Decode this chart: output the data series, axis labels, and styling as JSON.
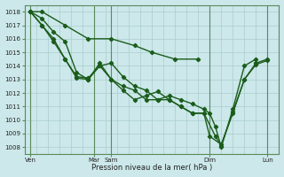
{
  "xlabel": "Pression niveau de la mer( hPa )",
  "background_color": "#cce8ea",
  "grid_color": "#aacccc",
  "line_color": "#1a5c1a",
  "vline_color": "#5a8a5a",
  "ylim": [
    1007.5,
    1018.5
  ],
  "yticks": [
    1008,
    1009,
    1010,
    1011,
    1012,
    1013,
    1014,
    1015,
    1016,
    1017,
    1018
  ],
  "xlim": [
    0,
    22
  ],
  "xtick_positions": [
    0.5,
    6,
    7.5,
    16,
    21
  ],
  "xtick_labels": [
    "Ven",
    "Mar",
    "Sam",
    "Dim",
    "Lun"
  ],
  "vline_positions": [
    0.5,
    6,
    7.5,
    16,
    21
  ],
  "series": [
    {
      "x": [
        0.5,
        1.5,
        3.5,
        5.5,
        7.5,
        9.5,
        11,
        13,
        15
      ],
      "y": [
        1018,
        1018,
        1017,
        1016,
        1016,
        1015.5,
        1015,
        1014.5,
        1014.5
      ]
    },
    {
      "x": [
        0.5,
        1.5,
        2.5,
        3.5,
        4.5,
        5.5,
        6.5,
        7.5,
        8.5,
        9.5,
        10.5,
        11.5,
        12.5,
        13.5,
        14.5,
        15.5,
        16,
        17,
        18,
        19,
        20,
        21
      ],
      "y": [
        1018,
        1017,
        1016,
        1014.5,
        1013.1,
        1013,
        1014,
        1013,
        1012.2,
        1011.5,
        1011.8,
        1012.1,
        1011.5,
        1011.0,
        1010.5,
        1010.5,
        1008.8,
        1008.2,
        1010.5,
        1013,
        1014.2,
        1014.5
      ]
    },
    {
      "x": [
        0.5,
        1.5,
        2.5,
        3.5,
        4.5,
        5.5,
        6.5,
        7.5,
        8.5,
        9.5,
        10.5,
        11.5,
        12.5,
        13.5,
        14.5,
        15.5,
        16.5,
        17,
        18,
        19,
        20,
        21
      ],
      "y": [
        1018,
        1017.5,
        1016.5,
        1015.8,
        1013.5,
        1013,
        1014.2,
        1013,
        1012.5,
        1012.2,
        1011.5,
        1011.5,
        1011.5,
        1011.0,
        1010.5,
        1010.5,
        1008.8,
        1008.1,
        1010.6,
        1013,
        1014.1,
        1014.4
      ]
    },
    {
      "x": [
        0.5,
        1.5,
        2.5,
        3.5,
        4.5,
        5.5,
        6.5,
        7.5,
        8.5,
        9.5,
        10.5,
        11.5,
        12.5,
        13.5,
        14.5,
        15.5,
        16,
        16.5,
        17,
        18,
        19,
        20
      ],
      "y": [
        1018,
        1017,
        1015.8,
        1014.5,
        1013.2,
        1013.1,
        1014,
        1014.2,
        1013.2,
        1012.5,
        1012.2,
        1011.5,
        1011.8,
        1011.5,
        1011.2,
        1010.8,
        1010.5,
        1009.5,
        1008.0,
        1010.8,
        1014.0,
        1014.5
      ]
    }
  ],
  "marker": "D",
  "marker_size": 2.2,
  "line_width": 1.0
}
